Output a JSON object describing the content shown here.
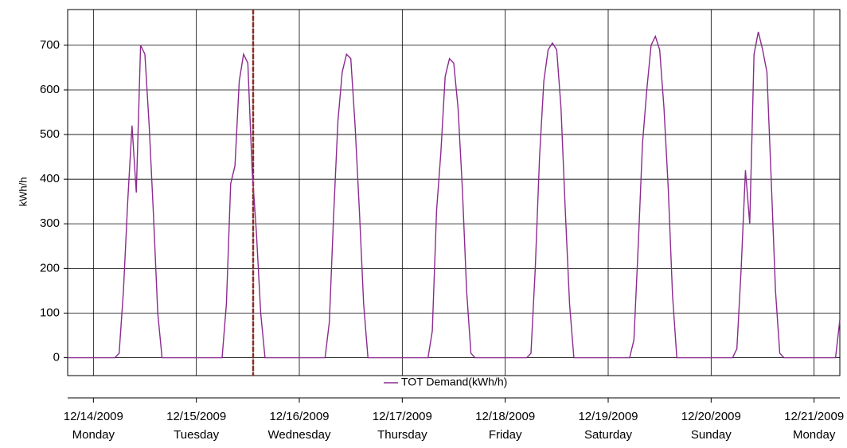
{
  "chart_data": {
    "type": "line",
    "y_label": "kWh/h",
    "categories": [
      null,
      null,
      null,
      null,
      null,
      null,
      "12/14/2009",
      null,
      null,
      null,
      null,
      null,
      null,
      null,
      null,
      null,
      null,
      null,
      null,
      null,
      null,
      null,
      null,
      null,
      null,
      null,
      null,
      null,
      null,
      null,
      "12/15/2009",
      null,
      null,
      null,
      null,
      null,
      null,
      null,
      null,
      null,
      null,
      null,
      null,
      null,
      null,
      null,
      null,
      null,
      null,
      null,
      null,
      null,
      null,
      null,
      "12/16/2009",
      null,
      null,
      null,
      null,
      null,
      null,
      null,
      null,
      null,
      null,
      null,
      null,
      null,
      null,
      null,
      null,
      null,
      null,
      null,
      null,
      null,
      null,
      null,
      "12/17/2009",
      null,
      null,
      null,
      null,
      null,
      null,
      null,
      null,
      null,
      null,
      null,
      null,
      null,
      null,
      null,
      null,
      null,
      null,
      null,
      null,
      null,
      null,
      null,
      "12/18/2009",
      null,
      null,
      null,
      null,
      null,
      null,
      null,
      null,
      null,
      null,
      null,
      null,
      null,
      null,
      null,
      null,
      null,
      null,
      null,
      null,
      null,
      null,
      null,
      "12/19/2009",
      null,
      null,
      null,
      null,
      null,
      null,
      null,
      null,
      null,
      null,
      null,
      null,
      null,
      null,
      null,
      null,
      null,
      null,
      null,
      null,
      null,
      null,
      null,
      "12/20/2009",
      null,
      null,
      null,
      null,
      null,
      null,
      null,
      null,
      null,
      null,
      null,
      null,
      null,
      null,
      null,
      null,
      null,
      null,
      null,
      null,
      null,
      null,
      null,
      "12/21/2009",
      null,
      null,
      null,
      null,
      null,
      null
    ],
    "category_sublabels": [
      null,
      null,
      null,
      null,
      null,
      null,
      "Monday",
      null,
      null,
      null,
      null,
      null,
      null,
      null,
      null,
      null,
      null,
      null,
      null,
      null,
      null,
      null,
      null,
      null,
      null,
      null,
      null,
      null,
      null,
      null,
      "Tuesday",
      null,
      null,
      null,
      null,
      null,
      null,
      null,
      null,
      null,
      null,
      null,
      null,
      null,
      null,
      null,
      null,
      null,
      null,
      null,
      null,
      null,
      null,
      null,
      "Wednesday",
      null,
      null,
      null,
      null,
      null,
      null,
      null,
      null,
      null,
      null,
      null,
      null,
      null,
      null,
      null,
      null,
      null,
      null,
      null,
      null,
      null,
      null,
      null,
      "Thursday",
      null,
      null,
      null,
      null,
      null,
      null,
      null,
      null,
      null,
      null,
      null,
      null,
      null,
      null,
      null,
      null,
      null,
      null,
      null,
      null,
      null,
      null,
      null,
      "Friday",
      null,
      null,
      null,
      null,
      null,
      null,
      null,
      null,
      null,
      null,
      null,
      null,
      null,
      null,
      null,
      null,
      null,
      null,
      null,
      null,
      null,
      null,
      null,
      "Saturday",
      null,
      null,
      null,
      null,
      null,
      null,
      null,
      null,
      null,
      null,
      null,
      null,
      null,
      null,
      null,
      null,
      null,
      null,
      null,
      null,
      null,
      null,
      null,
      "Sunday",
      null,
      null,
      null,
      null,
      null,
      null,
      null,
      null,
      null,
      null,
      null,
      null,
      null,
      null,
      null,
      null,
      null,
      null,
      null,
      null,
      null,
      null,
      null,
      "Monday",
      null,
      null,
      null,
      null,
      null,
      null
    ],
    "series": [
      {
        "name": "TOT Demand(kWh/h)",
        "color": "#8b2a8f",
        "values": [
          0,
          0,
          0,
          0,
          0,
          0,
          0,
          0,
          0,
          0,
          0,
          0,
          10,
          150,
          350,
          520,
          370,
          700,
          680,
          520,
          320,
          100,
          0,
          0,
          0,
          0,
          0,
          0,
          0,
          0,
          0,
          0,
          0,
          0,
          0,
          0,
          0,
          120,
          390,
          430,
          620,
          680,
          660,
          420,
          280,
          100,
          0,
          0,
          0,
          0,
          0,
          0,
          0,
          0,
          0,
          0,
          0,
          0,
          0,
          0,
          0,
          80,
          320,
          530,
          640,
          680,
          670,
          520,
          330,
          120,
          0,
          0,
          0,
          0,
          0,
          0,
          0,
          0,
          0,
          0,
          0,
          0,
          0,
          0,
          0,
          60,
          330,
          460,
          630,
          670,
          660,
          560,
          380,
          150,
          10,
          0,
          0,
          0,
          0,
          0,
          0,
          0,
          0,
          0,
          0,
          0,
          0,
          0,
          10,
          200,
          450,
          620,
          690,
          705,
          690,
          560,
          330,
          120,
          0,
          0,
          0,
          0,
          0,
          0,
          0,
          0,
          0,
          0,
          0,
          0,
          0,
          0,
          40,
          250,
          480,
          600,
          700,
          720,
          690,
          560,
          380,
          140,
          0,
          0,
          0,
          0,
          0,
          0,
          0,
          0,
          0,
          0,
          0,
          0,
          0,
          0,
          20,
          200,
          420,
          300,
          680,
          730,
          690,
          640,
          400,
          150,
          10,
          0,
          0,
          0,
          0,
          0,
          0,
          0,
          0,
          0,
          0,
          0,
          0,
          0,
          85
        ]
      }
    ],
    "ylim": [
      -40,
      780
    ],
    "yticks": [
      0,
      100,
      200,
      300,
      400,
      500,
      600,
      700
    ],
    "grid": true,
    "legend": "bottom"
  }
}
